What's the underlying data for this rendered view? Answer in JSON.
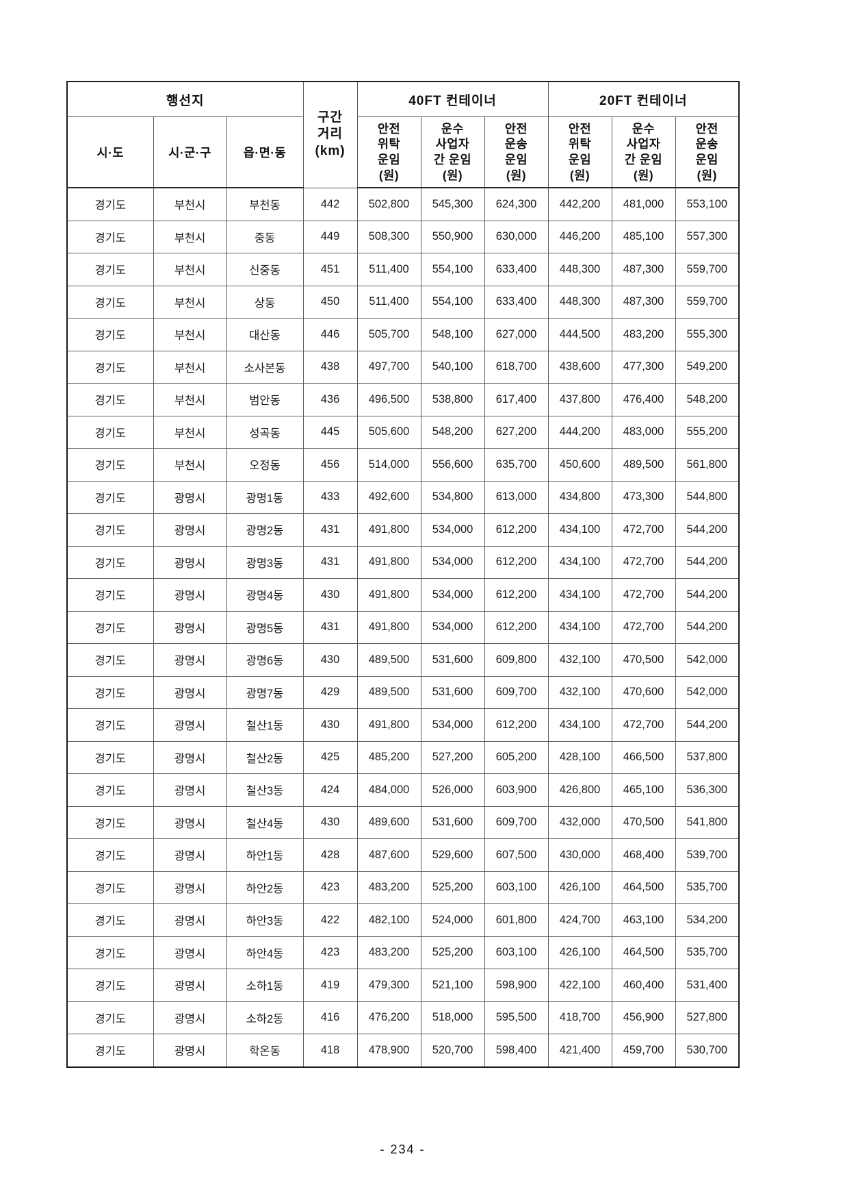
{
  "page": {
    "footer_page_number": "- 234 -"
  },
  "table": {
    "header": {
      "destination_group": "행선지",
      "distance": "구간\n거리\n(km)",
      "ft40_group": "40FT 컨테이너",
      "ft20_group": "20FT 컨테이너",
      "sido": "시·도",
      "sigungu": "시·군·구",
      "eupmyeondong": "읍·면·동",
      "safe_consign_fare": "안전\n위탁\n운임\n(원)",
      "carrier_mutual_fare": "운수\n사업자\n간 운임\n(원)",
      "safe_transport_fare": "안전\n운송\n운임\n(원)"
    },
    "rows": [
      [
        "경기도",
        "부천시",
        "부천동",
        "442",
        "502,800",
        "545,300",
        "624,300",
        "442,200",
        "481,000",
        "553,100"
      ],
      [
        "경기도",
        "부천시",
        "중동",
        "449",
        "508,300",
        "550,900",
        "630,000",
        "446,200",
        "485,100",
        "557,300"
      ],
      [
        "경기도",
        "부천시",
        "신중동",
        "451",
        "511,400",
        "554,100",
        "633,400",
        "448,300",
        "487,300",
        "559,700"
      ],
      [
        "경기도",
        "부천시",
        "상동",
        "450",
        "511,400",
        "554,100",
        "633,400",
        "448,300",
        "487,300",
        "559,700"
      ],
      [
        "경기도",
        "부천시",
        "대산동",
        "446",
        "505,700",
        "548,100",
        "627,000",
        "444,500",
        "483,200",
        "555,300"
      ],
      [
        "경기도",
        "부천시",
        "소사본동",
        "438",
        "497,700",
        "540,100",
        "618,700",
        "438,600",
        "477,300",
        "549,200"
      ],
      [
        "경기도",
        "부천시",
        "범안동",
        "436",
        "496,500",
        "538,800",
        "617,400",
        "437,800",
        "476,400",
        "548,200"
      ],
      [
        "경기도",
        "부천시",
        "성곡동",
        "445",
        "505,600",
        "548,200",
        "627,200",
        "444,200",
        "483,000",
        "555,200"
      ],
      [
        "경기도",
        "부천시",
        "오정동",
        "456",
        "514,000",
        "556,600",
        "635,700",
        "450,600",
        "489,500",
        "561,800"
      ],
      [
        "경기도",
        "광명시",
        "광명1동",
        "433",
        "492,600",
        "534,800",
        "613,000",
        "434,800",
        "473,300",
        "544,800"
      ],
      [
        "경기도",
        "광명시",
        "광명2동",
        "431",
        "491,800",
        "534,000",
        "612,200",
        "434,100",
        "472,700",
        "544,200"
      ],
      [
        "경기도",
        "광명시",
        "광명3동",
        "431",
        "491,800",
        "534,000",
        "612,200",
        "434,100",
        "472,700",
        "544,200"
      ],
      [
        "경기도",
        "광명시",
        "광명4동",
        "430",
        "491,800",
        "534,000",
        "612,200",
        "434,100",
        "472,700",
        "544,200"
      ],
      [
        "경기도",
        "광명시",
        "광명5동",
        "431",
        "491,800",
        "534,000",
        "612,200",
        "434,100",
        "472,700",
        "544,200"
      ],
      [
        "경기도",
        "광명시",
        "광명6동",
        "430",
        "489,500",
        "531,600",
        "609,800",
        "432,100",
        "470,500",
        "542,000"
      ],
      [
        "경기도",
        "광명시",
        "광명7동",
        "429",
        "489,500",
        "531,600",
        "609,700",
        "432,100",
        "470,600",
        "542,000"
      ],
      [
        "경기도",
        "광명시",
        "철산1동",
        "430",
        "491,800",
        "534,000",
        "612,200",
        "434,100",
        "472,700",
        "544,200"
      ],
      [
        "경기도",
        "광명시",
        "철산2동",
        "425",
        "485,200",
        "527,200",
        "605,200",
        "428,100",
        "466,500",
        "537,800"
      ],
      [
        "경기도",
        "광명시",
        "철산3동",
        "424",
        "484,000",
        "526,000",
        "603,900",
        "426,800",
        "465,100",
        "536,300"
      ],
      [
        "경기도",
        "광명시",
        "철산4동",
        "430",
        "489,600",
        "531,600",
        "609,700",
        "432,000",
        "470,500",
        "541,800"
      ],
      [
        "경기도",
        "광명시",
        "하안1동",
        "428",
        "487,600",
        "529,600",
        "607,500",
        "430,000",
        "468,400",
        "539,700"
      ],
      [
        "경기도",
        "광명시",
        "하안2동",
        "423",
        "483,200",
        "525,200",
        "603,100",
        "426,100",
        "464,500",
        "535,700"
      ],
      [
        "경기도",
        "광명시",
        "하안3동",
        "422",
        "482,100",
        "524,000",
        "601,800",
        "424,700",
        "463,100",
        "534,200"
      ],
      [
        "경기도",
        "광명시",
        "하안4동",
        "423",
        "483,200",
        "525,200",
        "603,100",
        "426,100",
        "464,500",
        "535,700"
      ],
      [
        "경기도",
        "광명시",
        "소하1동",
        "419",
        "479,300",
        "521,100",
        "598,900",
        "422,100",
        "460,400",
        "531,400"
      ],
      [
        "경기도",
        "광명시",
        "소하2동",
        "416",
        "476,200",
        "518,000",
        "595,500",
        "418,700",
        "456,900",
        "527,800"
      ],
      [
        "경기도",
        "광명시",
        "학온동",
        "418",
        "478,900",
        "520,700",
        "598,400",
        "421,400",
        "459,700",
        "530,700"
      ]
    ]
  }
}
